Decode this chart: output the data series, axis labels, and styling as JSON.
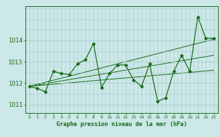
{
  "hours": [
    0,
    1,
    2,
    3,
    4,
    5,
    6,
    7,
    8,
    9,
    10,
    11,
    12,
    13,
    14,
    15,
    16,
    17,
    18,
    19,
    20,
    21,
    22,
    23
  ],
  "pressure": [
    1011.85,
    1011.75,
    1011.6,
    1012.55,
    1012.45,
    1012.4,
    1012.9,
    1013.1,
    1013.85,
    1011.8,
    1012.45,
    1012.85,
    1012.85,
    1012.15,
    1011.85,
    1012.9,
    1011.15,
    1011.3,
    1012.55,
    1013.3,
    1012.55,
    1015.1,
    1014.1,
    1014.1
  ],
  "trend1_x": [
    0,
    23
  ],
  "trend1_y": [
    1011.85,
    1012.6
  ],
  "trend2_x": [
    0,
    23
  ],
  "trend2_y": [
    1011.85,
    1013.3
  ],
  "trend3_x": [
    0,
    23
  ],
  "trend3_y": [
    1011.85,
    1014.05
  ],
  "line_color": "#1a6b1a",
  "bg_color": "#cce8e8",
  "grid_color": "#aacccc",
  "xlabel": "Graphe pression niveau de la mer (hPa)",
  "ylim_min": 1010.6,
  "ylim_max": 1015.6,
  "xlim_min": -0.5,
  "xlim_max": 23.5,
  "yticks": [
    1011,
    1012,
    1013,
    1014
  ],
  "marker": "D",
  "marker_size": 2.5,
  "linewidth": 0.9
}
